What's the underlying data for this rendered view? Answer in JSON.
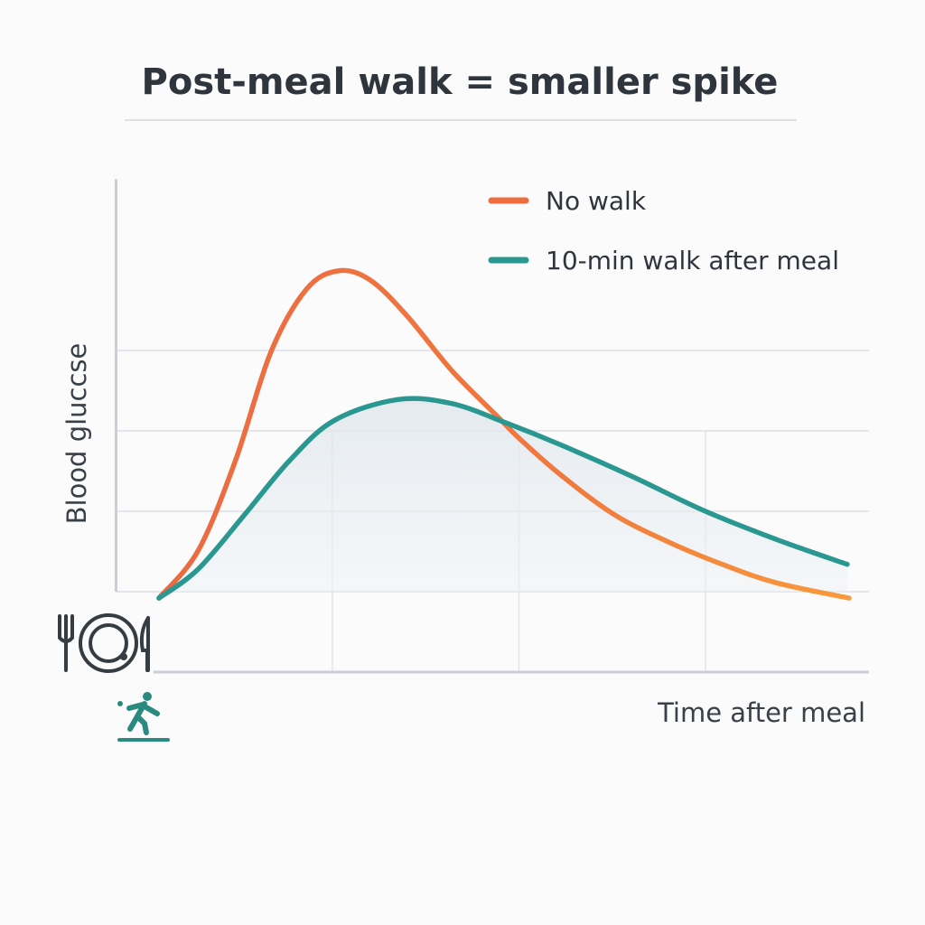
{
  "chart_data": {
    "type": "line",
    "title": "Post-meal walk = smaller spike",
    "xlabel": "Time after meal",
    "ylabel": "Blood gluccse",
    "xlim": [
      -0.16,
      3.9
    ],
    "ylim": [
      -1.0,
      5.13
    ],
    "grid": true,
    "legend_position": "top-right",
    "series": [
      {
        "name": "No walk",
        "color": "#ee6d40",
        "x": [
          0.07,
          0.28,
          0.48,
          0.67,
          0.86,
          1.03,
          1.2,
          1.4,
          1.64,
          1.88,
          2.0,
          2.22,
          2.51,
          2.8,
          3.09,
          3.38,
          3.77
        ],
        "y": [
          -0.08,
          0.51,
          1.63,
          2.98,
          3.76,
          3.99,
          3.88,
          3.43,
          2.75,
          2.19,
          1.91,
          1.46,
          0.96,
          0.62,
          0.34,
          0.11,
          -0.08
        ]
      },
      {
        "name": "10-min walk after meal",
        "color": "#2a9890",
        "x": [
          0.07,
          0.28,
          0.53,
          0.77,
          1.01,
          1.35,
          1.64,
          1.93,
          2.22,
          2.61,
          2.99,
          3.38,
          3.76
        ],
        "y": [
          -0.08,
          0.28,
          0.96,
          1.63,
          2.13,
          2.39,
          2.34,
          2.1,
          1.83,
          1.43,
          1.01,
          0.65,
          0.34
        ]
      }
    ],
    "icons": [
      "plate-fork-knife-icon",
      "walking-person-icon"
    ]
  }
}
